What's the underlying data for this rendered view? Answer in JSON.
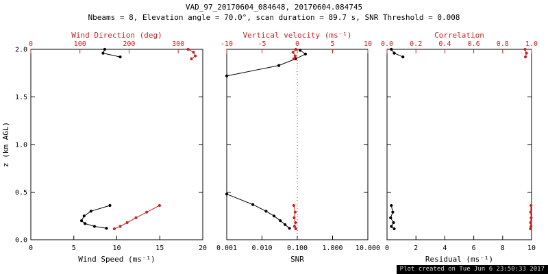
{
  "title": "VAD_97_20170604_084648, 20170604.084745",
  "subtitle": "Nbeams = 8, Elevation angle = 70.0°, scan duration = 89.7 s, SNR Threshold = 0.008",
  "footer": {
    "created_text": "Plot created on Tue Jun 6 23:50:33 2017"
  },
  "colors": {
    "axis_black": "#000000",
    "accent_red": "#cc2222",
    "background": "#ffffff",
    "footer_bg": "#000000",
    "footer_text": "#dcdcdc"
  },
  "y_axis": {
    "label": "z (km AGL)",
    "min": 0,
    "max": 2,
    "ticks": [
      0,
      0.5,
      1.0,
      1.5,
      2.0
    ],
    "tick_labels": [
      "0.0",
      "0.5",
      "1.0",
      "1.5",
      "2.0"
    ]
  },
  "chart_data": [
    {
      "id": "wind",
      "type": "line",
      "x_bottom": {
        "label": "Wind Speed (ms⁻¹)",
        "min": 0,
        "max": 20,
        "scale": "linear",
        "ticks": [
          0,
          5,
          10,
          15,
          20
        ],
        "tick_labels": [
          "0",
          "5",
          "10",
          "15",
          "20"
        ]
      },
      "x_top": {
        "label": "Wind Direction (deg)",
        "min": 0,
        "max": 350,
        "scale": "linear",
        "ticks": [
          0,
          100,
          200,
          300
        ],
        "tick_labels": [
          "0",
          "100",
          "200",
          "300"
        ]
      },
      "series": [
        {
          "name": "wind-speed",
          "axis": "bottom",
          "color": "#000000",
          "marker": "dot",
          "segments": [
            [
              [
                9.2,
                0.36
              ],
              [
                7.0,
                0.3
              ],
              [
                6.2,
                0.25
              ],
              [
                5.9,
                0.2
              ],
              [
                6.3,
                0.17
              ],
              [
                7.4,
                0.14
              ],
              [
                8.8,
                0.12
              ]
            ],
            [
              [
                8.6,
                2.0
              ],
              [
                8.4,
                1.96
              ],
              [
                10.4,
                1.92
              ]
            ]
          ]
        },
        {
          "name": "wind-direction",
          "axis": "top",
          "color": "#cc2222",
          "marker": "dot",
          "segments": [
            [
              [
                170,
                0.115
              ],
              [
                182,
                0.14
              ],
              [
                196,
                0.18
              ],
              [
                214,
                0.23
              ],
              [
                236,
                0.29
              ],
              [
                262,
                0.36
              ]
            ],
            [
              [
                320,
                2.0
              ],
              [
                331,
                1.97
              ],
              [
                335,
                1.93
              ],
              [
                327,
                1.9
              ]
            ]
          ]
        }
      ]
    },
    {
      "id": "snr",
      "type": "line",
      "x_bottom": {
        "label": "SNR",
        "min": 0.001,
        "max": 10,
        "scale": "log",
        "ticks": [
          0.001,
          0.01,
          0.1,
          1,
          10
        ],
        "tick_labels": [
          "0.001",
          "0.010",
          "0.100",
          "1.000",
          "10.000"
        ]
      },
      "x_top": {
        "label": "Vertical velocity (ms⁻¹)",
        "min": -10,
        "max": 10,
        "scale": "linear",
        "ticks": [
          -10,
          -5,
          0,
          5,
          10
        ],
        "tick_labels": [
          "-10",
          "-5",
          "0",
          "5",
          "10"
        ]
      },
      "ref_line": {
        "axis": "top",
        "value": 0,
        "color": "#cc2222",
        "style": "dotted"
      },
      "series": [
        {
          "name": "snr",
          "axis": "bottom",
          "color": "#000000",
          "marker": "dot",
          "segments": [
            [
              [
                0.001,
                0.48
              ],
              [
                0.0055,
                0.37
              ],
              [
                0.013,
                0.3
              ],
              [
                0.022,
                0.25
              ],
              [
                0.033,
                0.2
              ],
              [
                0.045,
                0.16
              ],
              [
                0.06,
                0.12
              ]
            ],
            [
              [
                0.001,
                1.72
              ],
              [
                0.03,
                1.83
              ],
              [
                0.09,
                1.9
              ],
              [
                0.17,
                1.95
              ],
              [
                0.12,
                1.99
              ]
            ]
          ]
        },
        {
          "name": "vertical-velocity",
          "axis": "top",
          "color": "#cc2222",
          "marker": "dot",
          "segments": [
            [
              [
                -0.2,
                0.115
              ],
              [
                -0.4,
                0.14
              ],
              [
                -0.25,
                0.18
              ],
              [
                -0.45,
                0.23
              ],
              [
                -0.3,
                0.29
              ],
              [
                -0.5,
                0.36
              ]
            ],
            [
              [
                -0.5,
                1.9
              ],
              [
                -0.3,
                1.93
              ],
              [
                -0.6,
                1.97
              ],
              [
                -0.2,
                2.0
              ]
            ]
          ]
        }
      ]
    },
    {
      "id": "residual",
      "type": "line",
      "x_bottom": {
        "label": "Residual (ms⁻¹)",
        "min": 0,
        "max": 10,
        "scale": "linear",
        "ticks": [
          0,
          2,
          4,
          6,
          8,
          10
        ],
        "tick_labels": [
          "0",
          "2",
          "4",
          "6",
          "8",
          "10"
        ]
      },
      "x_top": {
        "label": "Correlation",
        "min": 0,
        "max": 1,
        "scale": "linear",
        "ticks": [
          0,
          0.2,
          0.4,
          0.6,
          0.8,
          1.0
        ],
        "tick_labels": [
          "0.0",
          "0.2",
          "0.4",
          "0.6",
          "0.8",
          "1.0"
        ]
      },
      "series": [
        {
          "name": "residual",
          "axis": "bottom",
          "color": "#000000",
          "marker": "dot",
          "segments": [
            [
              [
                0.5,
                0.115
              ],
              [
                0.3,
                0.14
              ],
              [
                0.45,
                0.18
              ],
              [
                0.25,
                0.23
              ],
              [
                0.4,
                0.29
              ],
              [
                0.3,
                0.36
              ]
            ],
            [
              [
                0.3,
                2.0
              ],
              [
                0.5,
                1.96
              ],
              [
                1.1,
                1.92
              ]
            ]
          ]
        },
        {
          "name": "correlation",
          "axis": "top",
          "color": "#cc2222",
          "marker": "dot",
          "segments": [
            [
              [
                0.992,
                0.115
              ],
              [
                0.996,
                0.14
              ],
              [
                0.993,
                0.18
              ],
              [
                0.997,
                0.23
              ],
              [
                0.994,
                0.29
              ],
              [
                0.996,
                0.36
              ]
            ],
            [
              [
                0.955,
                2.0
              ],
              [
                0.965,
                1.96
              ],
              [
                0.958,
                1.92
              ]
            ]
          ]
        }
      ]
    }
  ]
}
